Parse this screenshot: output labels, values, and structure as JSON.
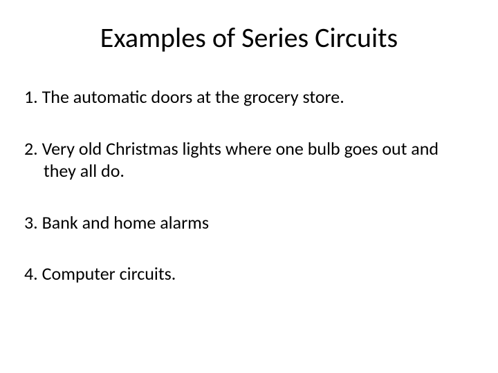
{
  "slide": {
    "title": "Examples of Series Circuits",
    "title_fontsize": 40,
    "title_color": "#000000",
    "background_color": "#ffffff",
    "items": [
      {
        "number": "1.",
        "text": "The automatic doors at the grocery store."
      },
      {
        "number": "2.",
        "text": "Very old Christmas lights where one bulb goes out and they all do."
      },
      {
        "number": "3.",
        "text": "Bank and home alarms"
      },
      {
        "number": "4.",
        "text": "Computer circuits."
      }
    ],
    "item_fontsize": 26,
    "item_color": "#000000",
    "item_spacing": 42
  }
}
